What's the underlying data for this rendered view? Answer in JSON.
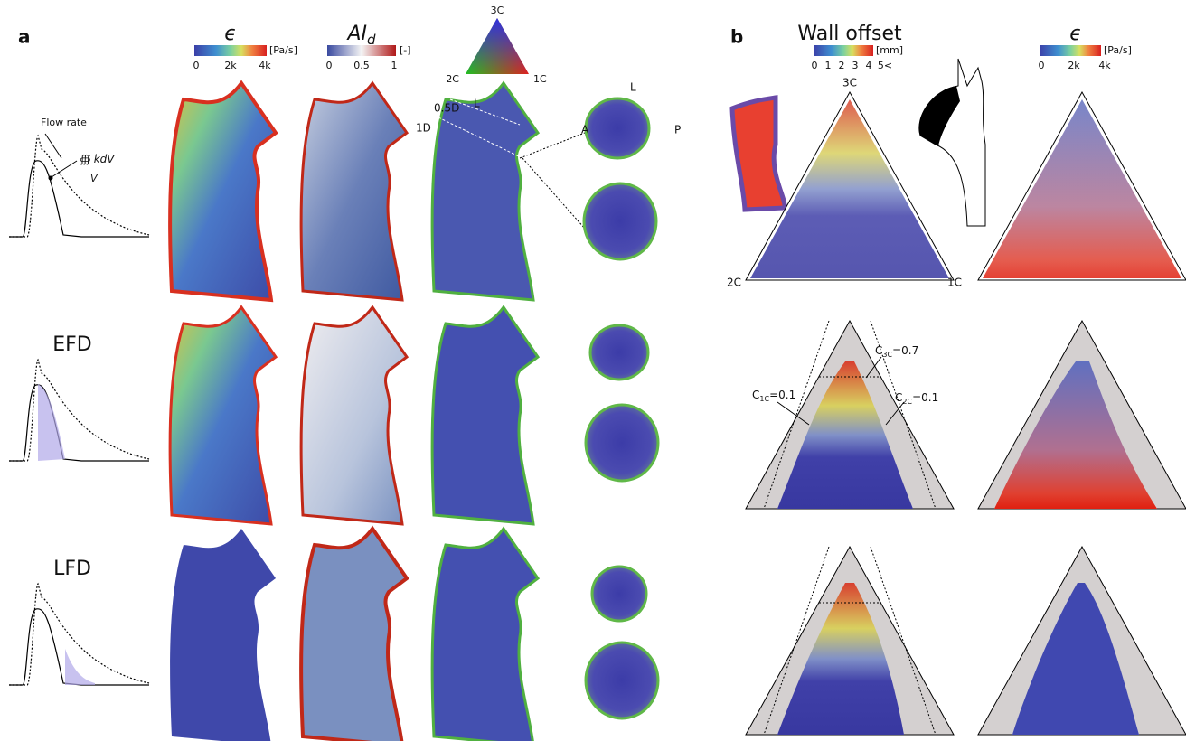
{
  "panel_a": {
    "label": "a",
    "epsilon": {
      "symbol": "ϵ",
      "ticks": [
        "0",
        "2k",
        "4k"
      ],
      "unit": "[Pa/s]"
    },
    "aid": {
      "symbol": "AI",
      "subscript": "d",
      "ticks": [
        "0",
        "0.5",
        "1"
      ],
      "unit": "[-]"
    },
    "color_triangle": {
      "top": "3C",
      "left": "2C",
      "right": "1C"
    },
    "flow": {
      "label": "Flow rate",
      "integral": "∰",
      "integrand": "kdV",
      "domain": "V"
    },
    "slices": {
      "upper": "0.5D",
      "lower": "1D",
      "side": "L"
    },
    "section_labels": {
      "top": "L",
      "left": "A",
      "right": "P"
    },
    "rows": [
      "EFD",
      "LFD"
    ]
  },
  "panel_b": {
    "label": "b",
    "wall_offset": {
      "title": "Wall offset",
      "unit": "[mm]",
      "ticks": [
        "0",
        "1",
        "2",
        "3",
        "4",
        "5<"
      ]
    },
    "epsilon": {
      "symbol": "ϵ",
      "ticks": [
        "0",
        "2k",
        "4k"
      ],
      "unit": "[Pa/s]"
    },
    "triangle": {
      "top": "3C",
      "left": "2C",
      "right": "1C"
    },
    "thresholds": [
      {
        "symbol": "C",
        "subscript": "3C",
        "text": "=0.7"
      },
      {
        "symbol": "C",
        "subscript": "1C",
        "text": "=0.1"
      },
      {
        "symbol": "C",
        "subscript": "2C",
        "text": "=0.1"
      }
    ]
  }
}
